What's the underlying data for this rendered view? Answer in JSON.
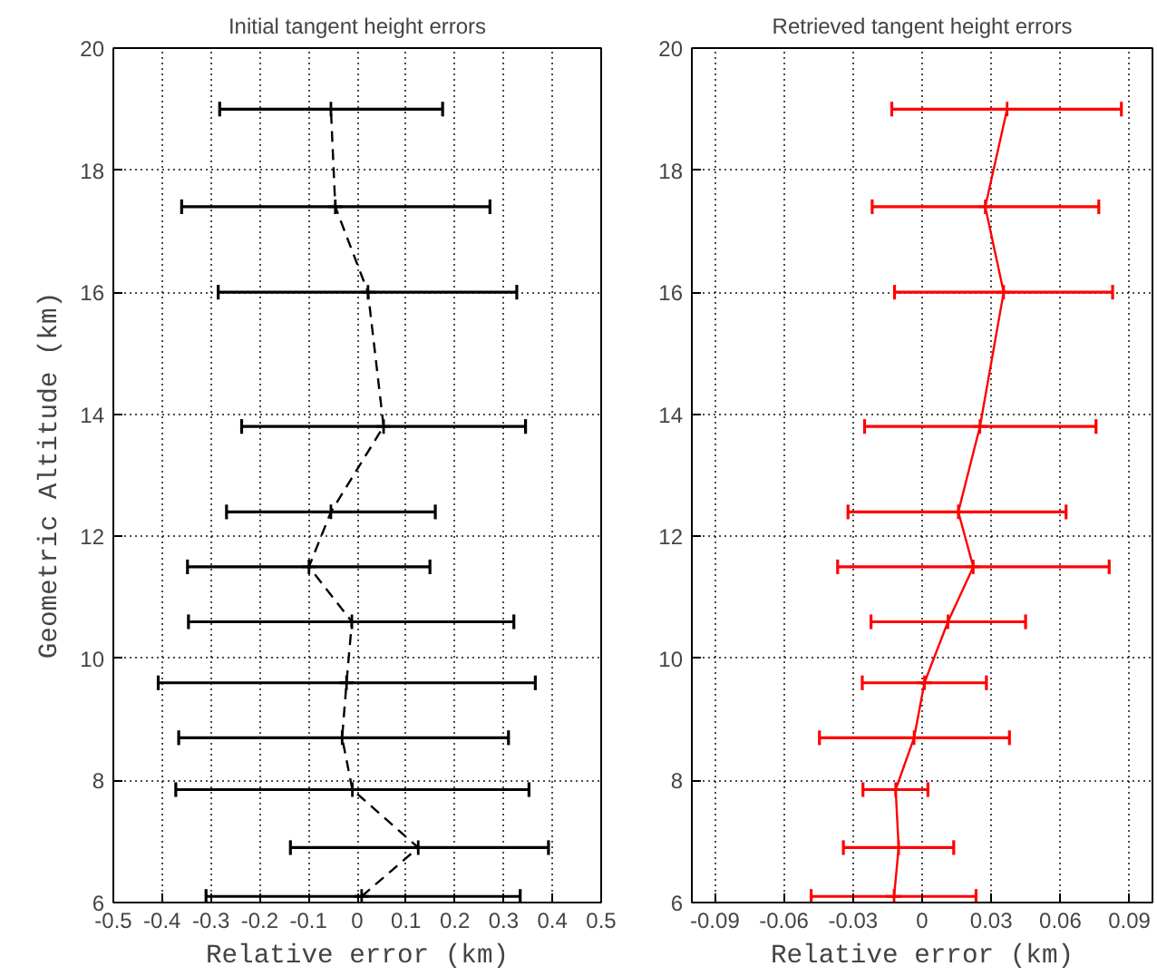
{
  "chart_data": [
    {
      "type": "line",
      "title": "Initial tangent height errors",
      "xlabel": "Relative error (km)",
      "ylabel": "Geometric Altitude (km)",
      "xlim": [
        -0.5,
        0.5
      ],
      "xticks": [
        -0.5,
        -0.4,
        -0.3,
        -0.2,
        -0.1,
        0,
        0.1,
        0.2,
        0.3,
        0.4,
        0.5
      ],
      "ylim": [
        6,
        20
      ],
      "yticks": [
        6,
        8,
        10,
        12,
        14,
        16,
        18,
        20
      ],
      "grid": true,
      "line_style": "dashed",
      "marker": "cross",
      "series": [
        {
          "color": "#000000",
          "x": [
            0.009,
            0.125,
            -0.01,
            -0.031,
            -0.022,
            -0.011,
            -0.099,
            -0.054,
            0.054,
            0.022,
            -0.045,
            -0.054
          ],
          "values": [
            6.1,
            6.9,
            7.85,
            8.7,
            9.6,
            10.6,
            11.5,
            12.4,
            13.8,
            16.0,
            17.4,
            19.0
          ],
          "xerrors": [
            [
              -0.31,
              0.334
            ],
            [
              -0.137,
              0.392
            ],
            [
              -0.372,
              0.352
            ],
            [
              -0.366,
              0.31
            ],
            [
              -0.408,
              0.365
            ],
            [
              -0.346,
              0.321
            ],
            [
              -0.348,
              0.149
            ],
            [
              -0.268,
              0.16
            ],
            [
              -0.237,
              0.345
            ],
            [
              -0.285,
              0.327
            ],
            [
              -0.36,
              0.272
            ],
            [
              -0.282,
              0.175
            ]
          ]
        }
      ]
    },
    {
      "type": "line",
      "title": "Retrieved tangent height errors",
      "xlabel": "Relative error (km)",
      "xlim": [
        -0.1,
        0.1
      ],
      "xticks": [
        -0.09,
        -0.06,
        -0.03,
        0,
        0.03,
        0.06,
        0.09
      ],
      "ylim": [
        6,
        20
      ],
      "yticks": [
        6,
        8,
        10,
        12,
        14,
        16,
        18,
        20
      ],
      "grid": true,
      "line_style": "solid",
      "marker": "cross",
      "series": [
        {
          "color": "#ff0000",
          "x": [
            -0.0122,
            -0.0102,
            -0.0115,
            -0.0035,
            0.001,
            0.0112,
            0.0222,
            0.0157,
            0.0251,
            0.0354,
            0.0274,
            0.0369
          ],
          "values": [
            6.1,
            6.9,
            7.85,
            8.7,
            9.6,
            10.6,
            11.5,
            12.4,
            13.8,
            16.0,
            17.4,
            19.0
          ],
          "xerrors": [
            [
              -0.0482,
              0.0234
            ],
            [
              -0.0342,
              0.0137
            ],
            [
              -0.0257,
              0.0025
            ],
            [
              -0.0446,
              0.0379
            ],
            [
              -0.026,
              0.0279
            ],
            [
              -0.0222,
              0.0449
            ],
            [
              -0.0367,
              0.0812
            ],
            [
              -0.0322,
              0.0625
            ],
            [
              -0.025,
              0.0755
            ],
            [
              -0.012,
              0.0827
            ],
            [
              -0.0217,
              0.0767
            ],
            [
              -0.0132,
              0.0865
            ]
          ]
        }
      ]
    }
  ]
}
